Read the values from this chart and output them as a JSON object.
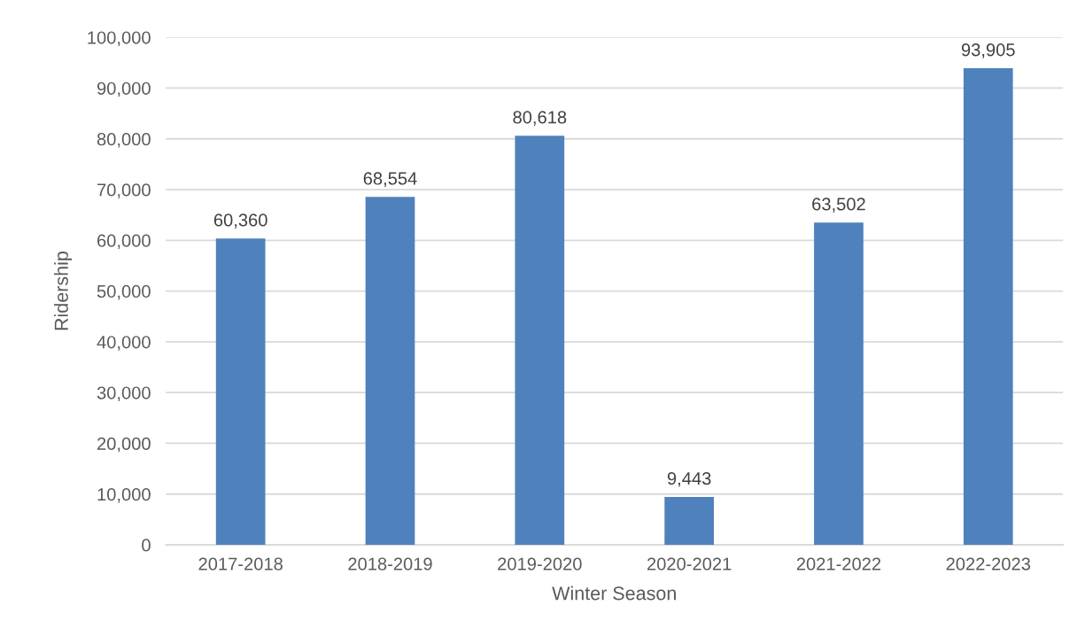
{
  "chart_data": {
    "type": "bar",
    "xlabel": "Winter Season",
    "ylabel": "Ridership",
    "categories": [
      "2017-2018",
      "2018-2019",
      "2019-2020",
      "2020-2021",
      "2021-2022",
      "2022-2023"
    ],
    "values": [
      60360,
      68554,
      80618,
      9443,
      63502,
      93905
    ],
    "value_labels": [
      "60,360",
      "68,554",
      "80,618",
      "9,443",
      "63,502",
      "93,905"
    ],
    "color": "#4f81bd",
    "ylim": [
      0,
      100000
    ],
    "yticks": [
      0,
      {
        "value": 10000,
        "label": "10,000"
      },
      {
        "value": 20000,
        "label": "20,000"
      },
      {
        "value": 30000,
        "label": "30,000"
      },
      {
        "value": 40000,
        "label": "40,000"
      },
      {
        "value": 50000,
        "label": "50,000"
      },
      {
        "value": 60000,
        "label": "60,000"
      },
      {
        "value": 70000,
        "label": "70,000"
      },
      {
        "value": 80000,
        "label": "80,000"
      },
      {
        "value": 90000,
        "label": "90,000"
      },
      {
        "value": 100000,
        "label": "100,000"
      }
    ],
    "grid": "y",
    "legend": false
  }
}
